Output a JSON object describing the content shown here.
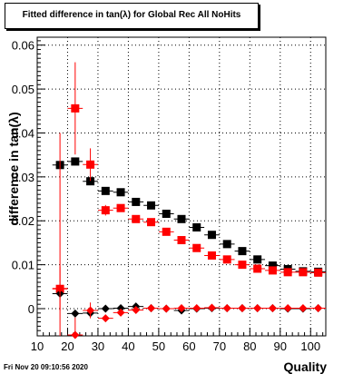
{
  "chart_data": {
    "type": "scatter",
    "title": "Fitted difference in tan(λ) for Global Rec All NoHits",
    "xlabel": "Quality",
    "ylabel": "difference in tan(λ)",
    "xlim": [
      10,
      105
    ],
    "ylim": [
      -0.0062,
      0.0618
    ],
    "x_ticks": [
      "10",
      "20",
      "30",
      "40",
      "50",
      "60",
      "70",
      "80",
      "90",
      "100"
    ],
    "y_ticks": [
      "0",
      "0.01",
      "0.02",
      "0.03",
      "0.04",
      "0.05",
      "0.06"
    ],
    "grid": true,
    "x_errors": 2.5,
    "series": [
      {
        "color": "#000000",
        "marker": "square",
        "x": [
          17.5,
          22.5,
          27.5,
          32.5,
          37.5,
          42.5,
          47.5,
          52.5,
          57.5,
          62.5,
          67.5,
          72.5,
          77.5,
          82.5,
          87.5,
          92.5,
          97.5,
          102.5
        ],
        "y": [
          0.0327,
          0.0335,
          0.029,
          0.0268,
          0.0265,
          0.0243,
          0.0235,
          0.0216,
          0.0204,
          0.0185,
          0.0168,
          0.0147,
          0.0131,
          0.0112,
          0.0098,
          0.009,
          0.0085,
          0.0084
        ],
        "yerr": [
          0.0,
          0.0,
          0.0009,
          0.0005,
          0.0004,
          0.0004,
          0.0003,
          0.0003,
          0.0003,
          0.0003,
          0.0003,
          0.0003,
          0.0003,
          0.0003,
          0.0003,
          0.0003,
          0.0003,
          0.0003
        ]
      },
      {
        "color": "#ff0000",
        "marker": "square",
        "x": [
          17.5,
          22.5,
          27.5,
          32.5,
          37.5,
          42.5,
          47.5,
          52.5,
          57.5,
          62.5,
          67.5,
          72.5,
          77.5,
          82.5,
          87.5,
          92.5,
          97.5,
          102.5
        ],
        "y": [
          0.0045,
          0.0456,
          0.0328,
          0.0224,
          0.0229,
          0.0204,
          0.0197,
          0.0175,
          0.0156,
          0.0138,
          0.0121,
          0.0112,
          0.01,
          0.0091,
          0.0087,
          0.0083,
          0.0083,
          0.0082
        ],
        "yerr": [
          0.0355,
          0.0105,
          0.0037,
          0.0012,
          0.0008,
          0.0006,
          0.0005,
          0.0004,
          0.0004,
          0.0004,
          0.0003,
          0.0003,
          0.0003,
          0.0003,
          0.0003,
          0.0003,
          0.0003,
          0.0003
        ]
      },
      {
        "color": "#000000",
        "marker": "diamond",
        "x": [
          17.5,
          22.5,
          27.5,
          32.5,
          37.5,
          42.5,
          47.5,
          52.5,
          57.5,
          62.5,
          67.5,
          72.5,
          77.5,
          82.5,
          87.5,
          92.5,
          97.5,
          102.5
        ],
        "y": [
          0.0034,
          -0.0011,
          -0.001,
          0.0,
          0.0001,
          0.0005,
          0.0001,
          0.0,
          -0.0004,
          0.0,
          0.0001,
          0.0001,
          0.0001,
          0.0001,
          0.0001,
          0.0,
          0.0,
          0.0001
        ],
        "yerr": [
          0.0,
          0.0,
          0.0005,
          0.0002,
          0.0002,
          0.0002,
          0.0001,
          0.0001,
          0.0001,
          0.0001,
          0.0001,
          0.0001,
          0.0001,
          0.0001,
          0.0001,
          0.0001,
          0.0001,
          0.0001
        ]
      },
      {
        "color": "#ff0000",
        "marker": "diamond",
        "x": [
          17.5,
          22.5,
          27.5,
          32.5,
          37.5,
          42.5,
          47.5,
          52.5,
          57.5,
          62.5,
          67.5,
          72.5,
          77.5,
          82.5,
          87.5,
          92.5,
          97.5,
          102.5
        ],
        "y": [
          0.0046,
          -0.006,
          -0.0004,
          -0.0022,
          -0.0009,
          -0.0003,
          0.0001,
          0.0,
          0.0001,
          0.0001,
          0.0002,
          0.0001,
          0.0001,
          0.0001,
          0.0001,
          0.0001,
          0.0001,
          0.0001
        ],
        "yerr": [
          0.005,
          0.004,
          0.0018,
          0.0007,
          0.0005,
          0.0004,
          0.0003,
          0.0003,
          0.0002,
          0.0002,
          0.0002,
          0.0002,
          0.0002,
          0.0002,
          0.0002,
          0.0002,
          0.0002,
          0.0002
        ]
      }
    ]
  },
  "footer": {
    "timestamp": "Fri Nov 20 09:10:56 2020"
  }
}
